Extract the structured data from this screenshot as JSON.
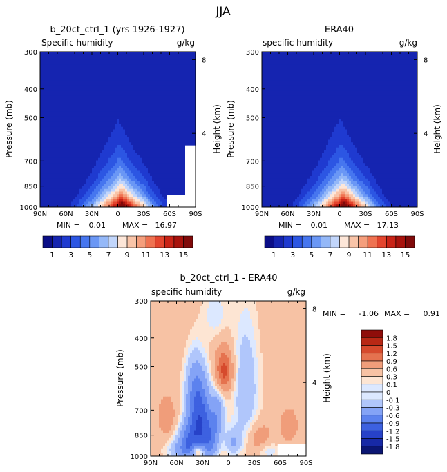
{
  "figure_title": "JJA",
  "colors": {
    "seq": [
      "#0b0e87",
      "#1524b0",
      "#1f3ad0",
      "#2c56e3",
      "#4676ef",
      "#6a97f5",
      "#94b8f8",
      "#c2d6fb",
      "#fde6d8",
      "#f9c4a8",
      "#f59e7c",
      "#ef7251",
      "#e4452e",
      "#c92316",
      "#a8120c",
      "#800a0a"
    ],
    "div": [
      "#0b1673",
      "#1729a6",
      "#2742c8",
      "#3d61e0",
      "#5c82ee",
      "#84a3f6",
      "#b0c6fb",
      "#dce8ff",
      "#fde5d3",
      "#f7c2a4",
      "#f09d7a",
      "#e5724f",
      "#d64a2d",
      "#b82815",
      "#8f0d0a"
    ]
  },
  "chart_data": [
    {
      "type": "heatmap",
      "title": "b_20ct_ctrl_1 (yrs 1926-1927)",
      "left_label": "Specific humidity",
      "right_label": "g/kg",
      "ylabel": "Pressure (mb)",
      "y2label": "Height (km)",
      "x_ticks": [
        "90N",
        "60N",
        "30N",
        "0",
        "30S",
        "60S",
        "90S"
      ],
      "y_ticks": [
        300,
        400,
        500,
        700,
        850,
        1000
      ],
      "y2_ticks": [
        8,
        4
      ],
      "min_label": "MIN =",
      "min": "0.01",
      "max_label": "MAX =",
      "max": "16.97",
      "peak": 16.97,
      "colorbar_labels": [
        "1",
        "3",
        "5",
        "7",
        "9",
        "11",
        "13",
        "15"
      ]
    },
    {
      "type": "heatmap",
      "title": "ERA40",
      "left_label": "specific humidity",
      "right_label": "g/kg",
      "ylabel": "Pressure (mb)",
      "y2label": "Height (km)",
      "x_ticks": [
        "90N",
        "60N",
        "30N",
        "0",
        "30S",
        "60S",
        "90S"
      ],
      "y_ticks": [
        300,
        400,
        500,
        700,
        850,
        1000
      ],
      "y2_ticks": [
        8,
        4
      ],
      "min_label": "MIN =",
      "min": "0.01",
      "max_label": "MAX =",
      "max": "17.13",
      "peak": 17.13,
      "colorbar_labels": [
        "1",
        "3",
        "5",
        "7",
        "9",
        "11",
        "13",
        "15"
      ]
    },
    {
      "type": "heatmap",
      "title": "b_20ct_ctrl_1 - ERA40",
      "left_label": "specific humidity",
      "right_label": "g/kg",
      "ylabel": "Pressure (mb)",
      "y2label": "Height (km)",
      "x_ticks": [
        "90N",
        "60N",
        "30N",
        "0",
        "30S",
        "60S",
        "90S"
      ],
      "y_ticks": [
        300,
        400,
        500,
        700,
        850,
        1000
      ],
      "y2_ticks": [
        8,
        4
      ],
      "min_label": "MIN =",
      "min": "-1.06",
      "max_label": "MAX =",
      "max": "0.91",
      "colorbar_labels": [
        "1.8",
        "1.5",
        "1.2",
        "0.9",
        "0.6",
        "0.3",
        "0.1",
        "0",
        "-0.1",
        "-0.3",
        "-0.6",
        "-0.9",
        "-1.2",
        "-1.5",
        "-1.8"
      ]
    }
  ]
}
